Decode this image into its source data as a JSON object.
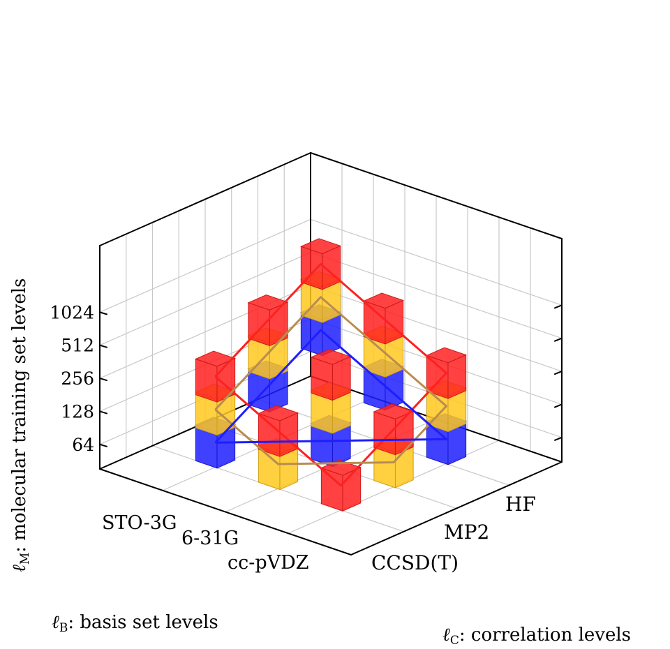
{
  "chart_data": {
    "type": "3d-cube-scatter",
    "axes": {
      "basis": {
        "label_symbol": "ℓ",
        "label_sub": "B",
        "label_text": ": basis set levels",
        "ticks": [
          "STO-3G",
          "6-31G",
          "cc-pVDZ"
        ]
      },
      "correlation": {
        "label_symbol": "ℓ",
        "label_sub": "C",
        "label_text": ": correlation levels",
        "ticks": [
          "HF",
          "MP2",
          "CCSD(T)"
        ]
      },
      "molecular": {
        "label_symbol": "ℓ",
        "label_sub": "M",
        "label_text": ": molecular training set levels",
        "ticks": [
          "64",
          "128",
          "256",
          "512",
          "1024"
        ]
      }
    },
    "colors": {
      "red": "#ff2020",
      "gold": "#ffc81e",
      "blue": "#1e1eff",
      "brown": "#b98c50"
    },
    "cubes": [
      {
        "basis": "STO-3G",
        "correlation": "HF",
        "molecular": 1024,
        "color": "red"
      },
      {
        "basis": "STO-3G",
        "correlation": "HF",
        "molecular": 512,
        "color": "gold"
      },
      {
        "basis": "STO-3G",
        "correlation": "HF",
        "molecular": 256,
        "color": "blue"
      },
      {
        "basis": "STO-3G",
        "correlation": "MP2",
        "molecular": 512,
        "color": "red"
      },
      {
        "basis": "STO-3G",
        "correlation": "MP2",
        "molecular": 256,
        "color": "gold"
      },
      {
        "basis": "STO-3G",
        "correlation": "MP2",
        "molecular": 128,
        "color": "blue"
      },
      {
        "basis": "STO-3G",
        "correlation": "CCSD(T)",
        "molecular": 256,
        "color": "red"
      },
      {
        "basis": "STO-3G",
        "correlation": "CCSD(T)",
        "molecular": 128,
        "color": "gold"
      },
      {
        "basis": "STO-3G",
        "correlation": "CCSD(T)",
        "molecular": 64,
        "color": "blue"
      },
      {
        "basis": "6-31G",
        "correlation": "HF",
        "molecular": 512,
        "color": "red"
      },
      {
        "basis": "6-31G",
        "correlation": "HF",
        "molecular": 256,
        "color": "gold"
      },
      {
        "basis": "6-31G",
        "correlation": "HF",
        "molecular": 128,
        "color": "blue"
      },
      {
        "basis": "6-31G",
        "correlation": "MP2",
        "molecular": 256,
        "color": "red"
      },
      {
        "basis": "6-31G",
        "correlation": "MP2",
        "molecular": 128,
        "color": "gold"
      },
      {
        "basis": "6-31G",
        "correlation": "MP2",
        "molecular": 64,
        "color": "blue"
      },
      {
        "basis": "6-31G",
        "correlation": "CCSD(T)",
        "molecular": 128,
        "color": "red"
      },
      {
        "basis": "6-31G",
        "correlation": "CCSD(T)",
        "molecular": 64,
        "color": "gold"
      },
      {
        "basis": "cc-pVDZ",
        "correlation": "HF",
        "molecular": 256,
        "color": "red"
      },
      {
        "basis": "cc-pVDZ",
        "correlation": "HF",
        "molecular": 128,
        "color": "gold"
      },
      {
        "basis": "cc-pVDZ",
        "correlation": "HF",
        "molecular": 64,
        "color": "blue"
      },
      {
        "basis": "cc-pVDZ",
        "correlation": "MP2",
        "molecular": 128,
        "color": "red"
      },
      {
        "basis": "cc-pVDZ",
        "correlation": "MP2",
        "molecular": 64,
        "color": "gold"
      },
      {
        "basis": "cc-pVDZ",
        "correlation": "CCSD(T)",
        "molecular": 64,
        "color": "red"
      }
    ],
    "polylines": [
      {
        "color": "red",
        "points": [
          [
            "STO-3G",
            "CCSD(T)",
            256
          ],
          [
            "STO-3G",
            "MP2",
            512
          ],
          [
            "STO-3G",
            "HF",
            1024
          ],
          [
            "6-31G",
            "HF",
            512
          ],
          [
            "cc-pVDZ",
            "HF",
            256
          ],
          [
            "cc-pVDZ",
            "MP2",
            128
          ],
          [
            "cc-pVDZ",
            "CCSD(T)",
            64
          ],
          [
            "6-31G",
            "CCSD(T)",
            128
          ],
          [
            "STO-3G",
            "CCSD(T)",
            256
          ]
        ]
      },
      {
        "color": "brown",
        "points": [
          [
            "STO-3G",
            "CCSD(T)",
            128
          ],
          [
            "STO-3G",
            "MP2",
            256
          ],
          [
            "STO-3G",
            "HF",
            512
          ],
          [
            "6-31G",
            "HF",
            256
          ],
          [
            "cc-pVDZ",
            "HF",
            128
          ],
          [
            "cc-pVDZ",
            "MP2",
            64
          ],
          [
            "6-31G",
            "CCSD(T)",
            64
          ],
          [
            "STO-3G",
            "CCSD(T)",
            128
          ]
        ]
      },
      {
        "color": "blue",
        "points": [
          [
            "STO-3G",
            "CCSD(T)",
            64
          ],
          [
            "STO-3G",
            "MP2",
            128
          ],
          [
            "STO-3G",
            "HF",
            256
          ],
          [
            "6-31G",
            "HF",
            128
          ],
          [
            "cc-pVDZ",
            "HF",
            64
          ],
          [
            "6-31G",
            "MP2",
            64
          ],
          [
            "STO-3G",
            "CCSD(T)",
            64
          ]
        ]
      }
    ],
    "grid": true,
    "box": true,
    "view": "3d"
  }
}
